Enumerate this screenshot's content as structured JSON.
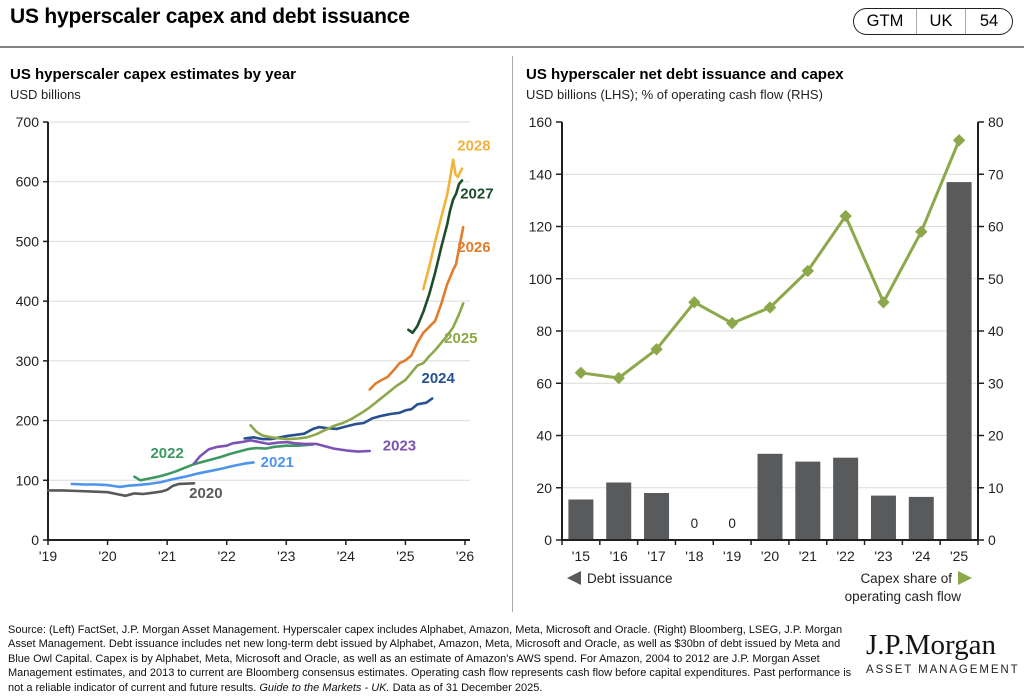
{
  "header": {
    "title": "US hyperscaler capex and debt issuance",
    "badge": {
      "book": "GTM",
      "region": "UK",
      "page": "54"
    }
  },
  "left_chart": {
    "title": "US hyperscaler capex estimates by year",
    "subtitle": "USD billions"
  },
  "right_chart": {
    "title": "US hyperscaler net debt issuance and capex",
    "subtitle": "USD billions (LHS); % of operating cash flow (RHS)"
  },
  "footer": {
    "source_text": "Source: (Left) FactSet, J.P. Morgan Asset Management. Hyperscaler capex includes Alphabet, Amazon, Meta, Microsoft and Oracle. (Right) Bloomberg, LSEG, J.P. Morgan Asset Management. Debt issuance includes net new long-term debt issued by Alphabet, Amazon, Meta, Microsoft and Oracle, as well as $30bn of debt issued by Meta and Blue Owl Capital. Capex is by Alphabet, Meta, Microsoft and Oracle, as well as an estimate of Amazon's AWS spend. For Amazon, 2004 to 2012 are J.P. Morgan Asset Management estimates, and 2013 to current are Bloomberg consensus estimates. Operating cash flow represents cash flow before capital expenditures. Past performance is not a reliable indicator of current and future results. ",
    "source_italic": "Guide to the Markets - UK.",
    "source_end": " Data as of 31 December 2025.",
    "logo_primary": "J.P.Morgan",
    "logo_secondary": "ASSET MANAGEMENT"
  },
  "style": {
    "axis_color": "#231F20",
    "grid_color": "#DADBDC"
  },
  "chart_data": [
    {
      "type": "line",
      "title": "US hyperscaler capex estimates by year",
      "ylabel": "USD billions",
      "xlim": [
        2019,
        2026
      ],
      "ylim": [
        0,
        700
      ],
      "ytick_step": 100,
      "xtick_labels": [
        "'19",
        "'20",
        "'21",
        "'22",
        "'23",
        "'24",
        "'25",
        "'26"
      ],
      "grid": true,
      "legend_position": "inline-labels",
      "series": [
        {
          "name": "2020",
          "color": "#58595B",
          "label": {
            "x": 2021.65,
            "y": 70
          },
          "points": [
            [
              2019.0,
              83
            ],
            [
              2019.25,
              83
            ],
            [
              2019.5,
              82
            ],
            [
              2019.75,
              81
            ],
            [
              2020.0,
              80
            ],
            [
              2020.15,
              77
            ],
            [
              2020.3,
              74
            ],
            [
              2020.45,
              78
            ],
            [
              2020.6,
              77
            ],
            [
              2020.75,
              79
            ],
            [
              2020.9,
              81
            ],
            [
              2021.0,
              84
            ],
            [
              2021.1,
              91
            ],
            [
              2021.2,
              94
            ],
            [
              2021.45,
              95
            ]
          ]
        },
        {
          "name": "2021",
          "color": "#4D94EC",
          "label": {
            "x": 2022.85,
            "y": 122
          },
          "points": [
            [
              2019.4,
              94
            ],
            [
              2019.6,
              93
            ],
            [
              2019.8,
              93
            ],
            [
              2020.0,
              92
            ],
            [
              2020.2,
              89
            ],
            [
              2020.35,
              91
            ],
            [
              2020.5,
              92
            ],
            [
              2020.7,
              94
            ],
            [
              2020.9,
              97
            ],
            [
              2021.1,
              102
            ],
            [
              2021.3,
              106
            ],
            [
              2021.5,
              111
            ],
            [
              2021.7,
              115
            ],
            [
              2021.9,
              119
            ],
            [
              2022.1,
              124
            ],
            [
              2022.3,
              128
            ],
            [
              2022.45,
              130
            ]
          ]
        },
        {
          "name": "2022",
          "color": "#3D9960",
          "label": {
            "x": 2021.0,
            "y": 137
          },
          "points": [
            [
              2020.45,
              106
            ],
            [
              2020.55,
              100
            ],
            [
              2020.7,
              103
            ],
            [
              2020.85,
              106
            ],
            [
              2021.0,
              110
            ],
            [
              2021.15,
              115
            ],
            [
              2021.3,
              121
            ],
            [
              2021.45,
              127
            ],
            [
              2021.6,
              131
            ],
            [
              2021.75,
              135
            ],
            [
              2021.9,
              139
            ],
            [
              2022.05,
              144
            ],
            [
              2022.2,
              148
            ],
            [
              2022.35,
              152
            ],
            [
              2022.5,
              154
            ],
            [
              2022.65,
              153
            ],
            [
              2022.8,
              156
            ],
            [
              2023.0,
              158
            ],
            [
              2023.2,
              158
            ],
            [
              2023.45,
              160
            ]
          ]
        },
        {
          "name": "2023",
          "color": "#7C53B5",
          "label": {
            "x": 2024.9,
            "y": 150
          },
          "points": [
            [
              2021.45,
              128
            ],
            [
              2021.55,
              140
            ],
            [
              2021.7,
              152
            ],
            [
              2021.85,
              156
            ],
            [
              2022.0,
              158
            ],
            [
              2022.1,
              162
            ],
            [
              2022.25,
              164
            ],
            [
              2022.4,
              167
            ],
            [
              2022.55,
              164
            ],
            [
              2022.7,
              161
            ],
            [
              2022.85,
              163
            ],
            [
              2023.0,
              164
            ],
            [
              2023.15,
              162
            ],
            [
              2023.3,
              161
            ],
            [
              2023.5,
              161
            ],
            [
              2023.65,
              157
            ],
            [
              2023.8,
              153
            ],
            [
              2024.0,
              150
            ],
            [
              2024.2,
              148
            ],
            [
              2024.4,
              149
            ]
          ]
        },
        {
          "name": "2024",
          "color": "#26508F",
          "label": {
            "x": 2025.55,
            "y": 263
          },
          "points": [
            [
              2022.3,
              170
            ],
            [
              2022.45,
              172
            ],
            [
              2022.6,
              169
            ],
            [
              2022.75,
              169
            ],
            [
              2022.9,
              172
            ],
            [
              2023.0,
              174
            ],
            [
              2023.15,
              176
            ],
            [
              2023.3,
              178
            ],
            [
              2023.45,
              186
            ],
            [
              2023.55,
              189
            ],
            [
              2023.7,
              187
            ],
            [
              2023.85,
              186
            ],
            [
              2024.0,
              190
            ],
            [
              2024.15,
              194
            ],
            [
              2024.3,
              196
            ],
            [
              2024.45,
              204
            ],
            [
              2024.6,
              208
            ],
            [
              2024.75,
              211
            ],
            [
              2024.9,
              213
            ],
            [
              2025.0,
              217
            ],
            [
              2025.1,
              219
            ],
            [
              2025.2,
              227
            ],
            [
              2025.35,
              230
            ],
            [
              2025.45,
              237
            ]
          ]
        },
        {
          "name": "2025",
          "color": "#8CA84A",
          "label": {
            "x": 2025.93,
            "y": 330
          },
          "points": [
            [
              2022.4,
              192
            ],
            [
              2022.5,
              181
            ],
            [
              2022.6,
              175
            ],
            [
              2022.75,
              172
            ],
            [
              2022.9,
              170
            ],
            [
              2023.05,
              169
            ],
            [
              2023.2,
              170
            ],
            [
              2023.35,
              172
            ],
            [
              2023.5,
              177
            ],
            [
              2023.65,
              184
            ],
            [
              2023.8,
              191
            ],
            [
              2023.95,
              196
            ],
            [
              2024.1,
              203
            ],
            [
              2024.25,
              212
            ],
            [
              2024.4,
              222
            ],
            [
              2024.55,
              234
            ],
            [
              2024.7,
              246
            ],
            [
              2024.85,
              258
            ],
            [
              2025.0,
              268
            ],
            [
              2025.1,
              280
            ],
            [
              2025.2,
              292
            ],
            [
              2025.3,
              296
            ],
            [
              2025.4,
              308
            ],
            [
              2025.5,
              318
            ],
            [
              2025.6,
              330
            ],
            [
              2025.7,
              342
            ],
            [
              2025.8,
              356
            ],
            [
              2025.9,
              378
            ],
            [
              2025.97,
              396
            ]
          ]
        },
        {
          "name": "2026",
          "color": "#E07C2C",
          "label": {
            "x": 2026.15,
            "y": 482
          },
          "points": [
            [
              2024.4,
              252
            ],
            [
              2024.5,
              262
            ],
            [
              2024.6,
              268
            ],
            [
              2024.7,
              273
            ],
            [
              2024.8,
              284
            ],
            [
              2024.9,
              296
            ],
            [
              2025.0,
              301
            ],
            [
              2025.1,
              309
            ],
            [
              2025.2,
              330
            ],
            [
              2025.3,
              347
            ],
            [
              2025.4,
              357
            ],
            [
              2025.5,
              367
            ],
            [
              2025.6,
              395
            ],
            [
              2025.7,
              428
            ],
            [
              2025.8,
              452
            ],
            [
              2025.85,
              462
            ],
            [
              2025.9,
              488
            ],
            [
              2025.97,
              524
            ]
          ]
        },
        {
          "name": "2027",
          "color": "#1E4D2B",
          "label": {
            "x": 2026.2,
            "y": 572
          },
          "points": [
            [
              2025.05,
              352
            ],
            [
              2025.12,
              347
            ],
            [
              2025.2,
              358
            ],
            [
              2025.3,
              382
            ],
            [
              2025.4,
              412
            ],
            [
              2025.5,
              448
            ],
            [
              2025.6,
              490
            ],
            [
              2025.7,
              528
            ],
            [
              2025.75,
              552
            ],
            [
              2025.8,
              570
            ],
            [
              2025.85,
              580
            ],
            [
              2025.9,
              596
            ],
            [
              2025.95,
              602
            ]
          ]
        },
        {
          "name": "2028",
          "color": "#F2B33D",
          "label": {
            "x": 2026.15,
            "y": 652
          },
          "points": [
            [
              2025.3,
              420
            ],
            [
              2025.4,
              458
            ],
            [
              2025.5,
              500
            ],
            [
              2025.6,
              540
            ],
            [
              2025.7,
              578
            ],
            [
              2025.75,
              606
            ],
            [
              2025.8,
              637
            ],
            [
              2025.84,
              612
            ],
            [
              2025.88,
              608
            ],
            [
              2025.95,
              622
            ]
          ]
        }
      ]
    },
    {
      "type": "bar+line",
      "title": "US hyperscaler net debt issuance and capex",
      "ylabel_lhs": "USD billions (LHS)",
      "ylabel_rhs": "% of operating cash flow (RHS)",
      "categories": [
        "'15",
        "'16",
        "'17",
        "'18",
        "'19",
        "'20",
        "'21",
        "'22",
        "'23",
        "'24",
        "'25"
      ],
      "bars": {
        "name": "Debt issuance",
        "axis": "LHS",
        "color": "#595A5C",
        "values": [
          15.5,
          22,
          18,
          0,
          0,
          33,
          30,
          31.5,
          17,
          16.5,
          137
        ]
      },
      "line": {
        "name": "Capex share of operating cash flow",
        "axis": "RHS",
        "color": "#8CA84A",
        "values": [
          32,
          31,
          36.5,
          45.5,
          41.5,
          44.5,
          51.5,
          62,
          45.5,
          59,
          76.5
        ]
      },
      "lhs": {
        "min": 0,
        "max": 160,
        "step": 20
      },
      "rhs": {
        "min": 0,
        "max": 80,
        "step": 10
      },
      "zero_label_indices": [
        3,
        4
      ],
      "grid": true,
      "legend": {
        "left": "Debt issuance",
        "right_line1": "Capex share of",
        "right_line2": "operating cash flow"
      }
    }
  ]
}
